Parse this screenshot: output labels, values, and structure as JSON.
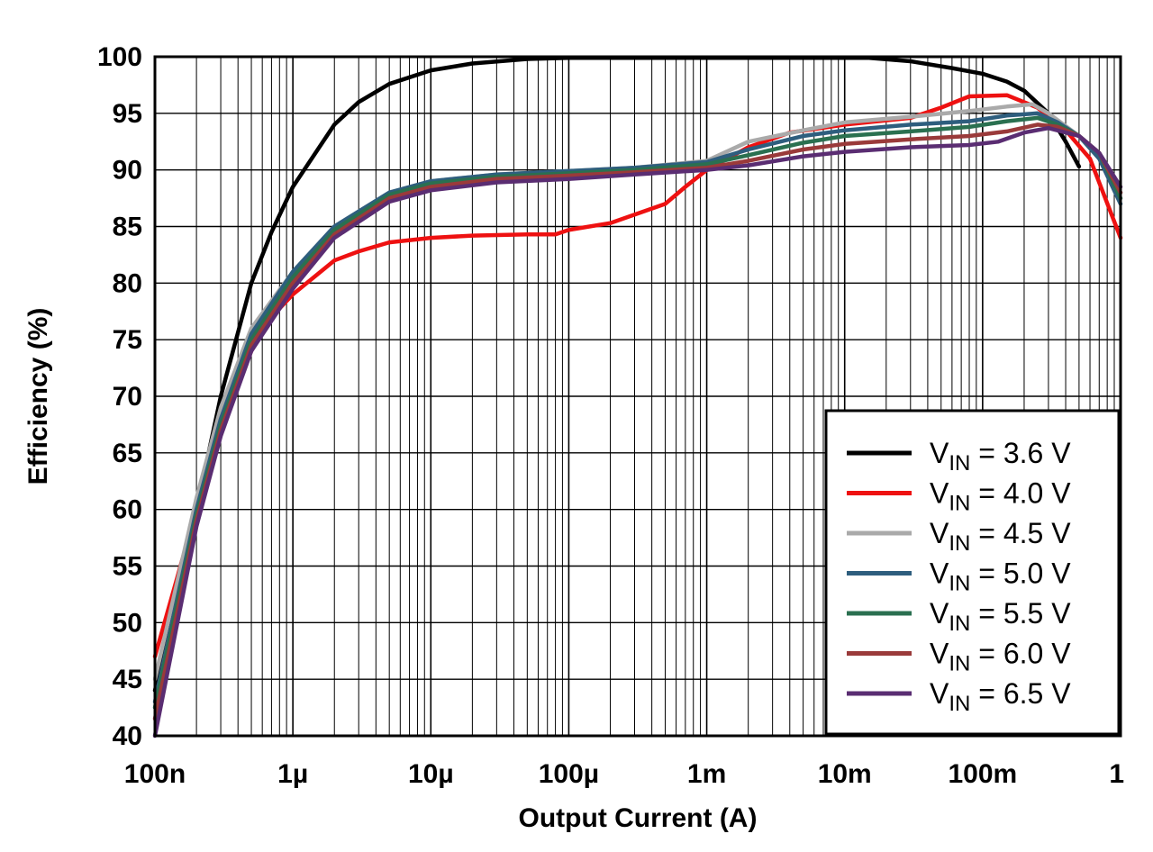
{
  "chart_data": {
    "type": "line",
    "title": "",
    "xlabel": "Output Current (A)",
    "ylabel": "Efficiency (%)",
    "xscale": "log",
    "xlim": [
      1e-07,
      1
    ],
    "ylim": [
      40,
      100
    ],
    "grid": true,
    "legend_position": "bottom-right",
    "x_ticks": [
      {
        "value": 1e-07,
        "label": "100n"
      },
      {
        "value": 1e-06,
        "label": "1µ"
      },
      {
        "value": 1e-05,
        "label": "10µ"
      },
      {
        "value": 0.0001,
        "label": "100µ"
      },
      {
        "value": 0.001,
        "label": "1m"
      },
      {
        "value": 0.01,
        "label": "10m"
      },
      {
        "value": 0.1,
        "label": "100m"
      },
      {
        "value": 1,
        "label": "1"
      }
    ],
    "y_ticks": [
      40,
      45,
      50,
      55,
      60,
      65,
      70,
      75,
      80,
      85,
      90,
      95,
      100
    ],
    "series": [
      {
        "name": "V = 3.6 V",
        "sub": "IN",
        "prefix": "V",
        "suffix": " = 3.6 V",
        "color": "#000000",
        "points": [
          [
            1e-07,
            44
          ],
          [
            2e-07,
            60
          ],
          [
            3e-07,
            70
          ],
          [
            5e-07,
            80
          ],
          [
            7e-07,
            84.5
          ],
          [
            1e-06,
            88.5
          ],
          [
            2e-06,
            94
          ],
          [
            3e-06,
            96
          ],
          [
            5e-06,
            97.6
          ],
          [
            1e-05,
            98.8
          ],
          [
            2e-05,
            99.4
          ],
          [
            5e-05,
            99.8
          ],
          [
            0.0001,
            99.9
          ],
          [
            0.00012,
            99.9
          ],
          [
            0.015,
            99.9
          ],
          [
            0.03,
            99.6
          ],
          [
            0.06,
            99
          ],
          [
            0.1,
            98.5
          ],
          [
            0.15,
            97.8
          ],
          [
            0.2,
            97
          ],
          [
            0.3,
            95
          ],
          [
            0.4,
            92.5
          ],
          [
            0.5,
            90.3
          ]
        ]
      },
      {
        "name": "V = 4.0 V",
        "sub": "IN",
        "prefix": "V",
        "suffix": " = 4.0 V",
        "color": "#ee1111",
        "points": [
          [
            1e-07,
            47
          ],
          [
            2e-07,
            60
          ],
          [
            3e-07,
            67
          ],
          [
            5e-07,
            74
          ],
          [
            7e-07,
            77
          ],
          [
            1e-06,
            79
          ],
          [
            2e-06,
            82
          ],
          [
            3e-06,
            82.8
          ],
          [
            5e-06,
            83.6
          ],
          [
            1e-05,
            84
          ],
          [
            2e-05,
            84.2
          ],
          [
            5e-05,
            84.3
          ],
          [
            8e-05,
            84.3
          ],
          [
            0.0001,
            84.7
          ],
          [
            0.0002,
            85.3
          ],
          [
            0.0005,
            87
          ],
          [
            0.0007,
            88.5
          ],
          [
            0.001,
            90
          ],
          [
            0.002,
            92
          ],
          [
            0.004,
            93.3
          ],
          [
            0.01,
            94
          ],
          [
            0.03,
            94.6
          ],
          [
            0.05,
            95.5
          ],
          [
            0.08,
            96.5
          ],
          [
            0.15,
            96.6
          ],
          [
            0.25,
            95.5
          ],
          [
            0.4,
            93.5
          ],
          [
            0.6,
            91
          ],
          [
            1,
            84
          ]
        ]
      },
      {
        "name": "V = 4.5 V",
        "sub": "IN",
        "prefix": "V",
        "suffix": " = 4.5 V",
        "color": "#aaaaaa",
        "points": [
          [
            1e-07,
            45
          ],
          [
            2e-07,
            61
          ],
          [
            3e-07,
            69
          ],
          [
            5e-07,
            76
          ],
          [
            1e-06,
            81
          ],
          [
            2e-06,
            85
          ],
          [
            5e-06,
            88
          ],
          [
            1e-05,
            89
          ],
          [
            3e-05,
            89.6
          ],
          [
            0.0001,
            89.9
          ],
          [
            0.0003,
            90.2
          ],
          [
            0.001,
            90.8
          ],
          [
            0.002,
            92.5
          ],
          [
            0.005,
            93.5
          ],
          [
            0.01,
            94.2
          ],
          [
            0.03,
            94.7
          ],
          [
            0.08,
            95.2
          ],
          [
            0.15,
            95.6
          ],
          [
            0.23,
            95.8
          ],
          [
            0.3,
            95
          ],
          [
            0.5,
            93
          ],
          [
            0.7,
            91
          ],
          [
            1,
            88
          ]
        ]
      },
      {
        "name": "V = 5.0 V",
        "sub": "IN",
        "prefix": "V",
        "suffix": " = 5.0 V",
        "color": "#2e5e7e",
        "points": [
          [
            1e-07,
            43
          ],
          [
            2e-07,
            60
          ],
          [
            3e-07,
            68
          ],
          [
            5e-07,
            75.5
          ],
          [
            1e-06,
            81
          ],
          [
            2e-06,
            85
          ],
          [
            5e-06,
            88
          ],
          [
            1e-05,
            89
          ],
          [
            3e-05,
            89.6
          ],
          [
            0.0001,
            89.9
          ],
          [
            0.0003,
            90.2
          ],
          [
            0.001,
            90.7
          ],
          [
            0.002,
            91.8
          ],
          [
            0.005,
            93
          ],
          [
            0.01,
            93.5
          ],
          [
            0.03,
            94
          ],
          [
            0.08,
            94.3
          ],
          [
            0.15,
            94.8
          ],
          [
            0.25,
            95
          ],
          [
            0.35,
            94.2
          ],
          [
            0.5,
            93
          ],
          [
            0.7,
            91
          ],
          [
            1,
            87
          ]
        ]
      },
      {
        "name": "V = 5.5 V",
        "sub": "IN",
        "prefix": "V",
        "suffix": " = 5.5 V",
        "color": "#2a7050",
        "points": [
          [
            1e-07,
            42.5
          ],
          [
            2e-07,
            59.5
          ],
          [
            3e-07,
            67.5
          ],
          [
            5e-07,
            75
          ],
          [
            1e-06,
            80.5
          ],
          [
            2e-06,
            84.7
          ],
          [
            5e-06,
            87.8
          ],
          [
            1e-05,
            88.8
          ],
          [
            3e-05,
            89.4
          ],
          [
            0.0001,
            89.7
          ],
          [
            0.0003,
            90
          ],
          [
            0.001,
            90.5
          ],
          [
            0.002,
            91.3
          ],
          [
            0.005,
            92.4
          ],
          [
            0.01,
            93
          ],
          [
            0.03,
            93.4
          ],
          [
            0.08,
            93.8
          ],
          [
            0.15,
            94.3
          ],
          [
            0.25,
            94.6
          ],
          [
            0.35,
            94
          ],
          [
            0.5,
            93
          ],
          [
            0.7,
            91.5
          ],
          [
            1,
            87.5
          ]
        ]
      },
      {
        "name": "V = 6.0 V",
        "sub": "IN",
        "prefix": "V",
        "suffix": " = 6.0 V",
        "color": "#9a3a3a",
        "points": [
          [
            1e-07,
            41.5
          ],
          [
            2e-07,
            59
          ],
          [
            3e-07,
            67
          ],
          [
            5e-07,
            74.5
          ],
          [
            1e-06,
            80
          ],
          [
            2e-06,
            84.3
          ],
          [
            5e-06,
            87.5
          ],
          [
            1e-05,
            88.5
          ],
          [
            3e-05,
            89.2
          ],
          [
            0.0001,
            89.5
          ],
          [
            0.0003,
            89.8
          ],
          [
            0.001,
            90.2
          ],
          [
            0.002,
            90.8
          ],
          [
            0.005,
            91.8
          ],
          [
            0.01,
            92.3
          ],
          [
            0.03,
            92.7
          ],
          [
            0.08,
            93
          ],
          [
            0.15,
            93.4
          ],
          [
            0.25,
            94
          ],
          [
            0.35,
            93.8
          ],
          [
            0.5,
            93
          ],
          [
            0.7,
            91.5
          ],
          [
            1,
            88
          ]
        ]
      },
      {
        "name": "V = 6.5 V",
        "sub": "IN",
        "prefix": "V",
        "suffix": " = 6.5 V",
        "color": "#5a2d72",
        "points": [
          [
            1e-07,
            40
          ],
          [
            2e-07,
            58.5
          ],
          [
            3e-07,
            66.5
          ],
          [
            5e-07,
            74
          ],
          [
            1e-06,
            79.5
          ],
          [
            2e-06,
            84
          ],
          [
            5e-06,
            87.2
          ],
          [
            1e-05,
            88.2
          ],
          [
            3e-05,
            88.9
          ],
          [
            0.0001,
            89.2
          ],
          [
            0.0003,
            89.6
          ],
          [
            0.001,
            90
          ],
          [
            0.002,
            90.4
          ],
          [
            0.005,
            91.2
          ],
          [
            0.01,
            91.6
          ],
          [
            0.03,
            92
          ],
          [
            0.08,
            92.2
          ],
          [
            0.13,
            92.5
          ],
          [
            0.2,
            93.3
          ],
          [
            0.3,
            93.7
          ],
          [
            0.5,
            93
          ],
          [
            0.7,
            91.5
          ],
          [
            1,
            88.5
          ]
        ]
      }
    ]
  }
}
